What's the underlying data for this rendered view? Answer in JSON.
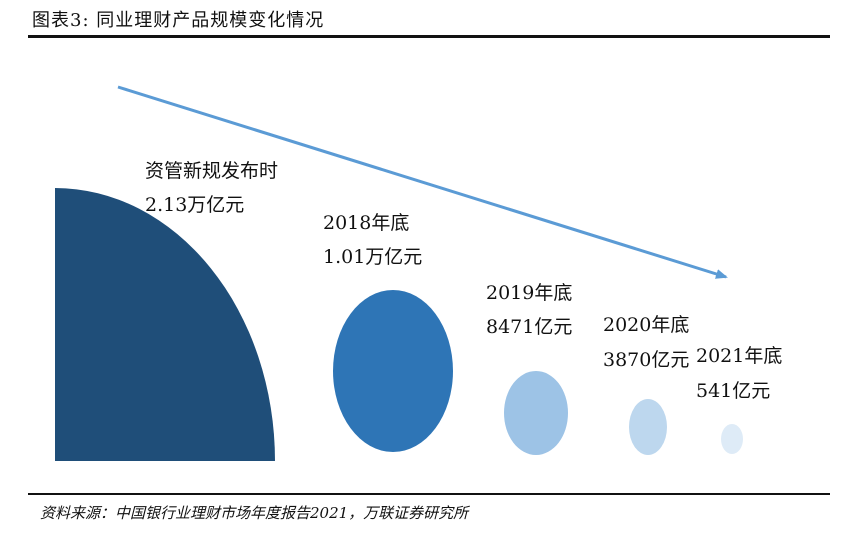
{
  "header": {
    "title": "图表3:   同业理财产品规模变化情况"
  },
  "diagram": {
    "stages": [
      {
        "label": "资管新规发布时",
        "value": "2.13万亿元",
        "amount_wan_yi": 2.13,
        "color": "#1f4e79"
      },
      {
        "label": "2018年底",
        "value": "1.01万亿元",
        "amount_wan_yi": 1.01,
        "color": "#2e75b6"
      },
      {
        "label": "2019年底",
        "value": "8471亿元",
        "amount_wan_yi": 0.8471,
        "color": "#9dc3e6"
      },
      {
        "label": "2020年底",
        "value": "3870亿元",
        "amount_wan_yi": 0.387,
        "color": "#bdd7ee"
      },
      {
        "label": "2021年底",
        "value": "541亿元",
        "amount_wan_yi": 0.0541,
        "color": "#deebf7"
      }
    ],
    "trend_arrow_color": "#5b9bd5"
  },
  "footer": {
    "source": "资料来源：中国银行业理财市场年度报告2021，万联证券研究所"
  }
}
